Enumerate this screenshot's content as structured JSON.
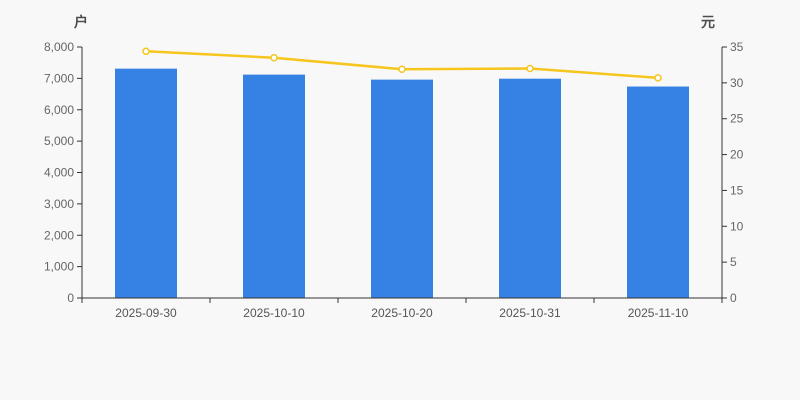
{
  "chart_data": {
    "type": "bar",
    "subtype": "bar-with-line-dual-axis",
    "categories": [
      "2025-09-30",
      "2025-10-10",
      "2025-10-20",
      "2025-10-31",
      "2025-11-10"
    ],
    "series": [
      {
        "name": "",
        "type": "bar",
        "axis": "left",
        "values": [
          7310,
          7120,
          6960,
          6990,
          6740
        ],
        "color": "#3581e4"
      },
      {
        "name": "",
        "type": "line",
        "axis": "right",
        "values": [
          34.4,
          33.5,
          31.9,
          32.0,
          30.7
        ],
        "color": "#f6c51e",
        "marker_fill": "#ffffff"
      }
    ],
    "left_axis": {
      "name": "户",
      "min": 0,
      "max": 8000,
      "step": 1000,
      "tick_labels": [
        "0",
        "1,000",
        "2,000",
        "3,000",
        "4,000",
        "5,000",
        "6,000",
        "7,000",
        "8,000"
      ]
    },
    "right_axis": {
      "name": "元",
      "min": 0,
      "max": 35,
      "step": 5,
      "tick_labels": [
        "0",
        "5",
        "10",
        "15",
        "20",
        "25",
        "30",
        "35"
      ]
    },
    "grid": false,
    "legend": null,
    "title": ""
  },
  "colors": {
    "background": "#f8f8f8",
    "axis_line": "#333333",
    "tick_text": "#666666",
    "date_text": "#555555",
    "axis_name_text": "#4d4d4d",
    "bar": "#3581e4",
    "line": "#f6c51e",
    "marker_fill": "#ffffff"
  }
}
